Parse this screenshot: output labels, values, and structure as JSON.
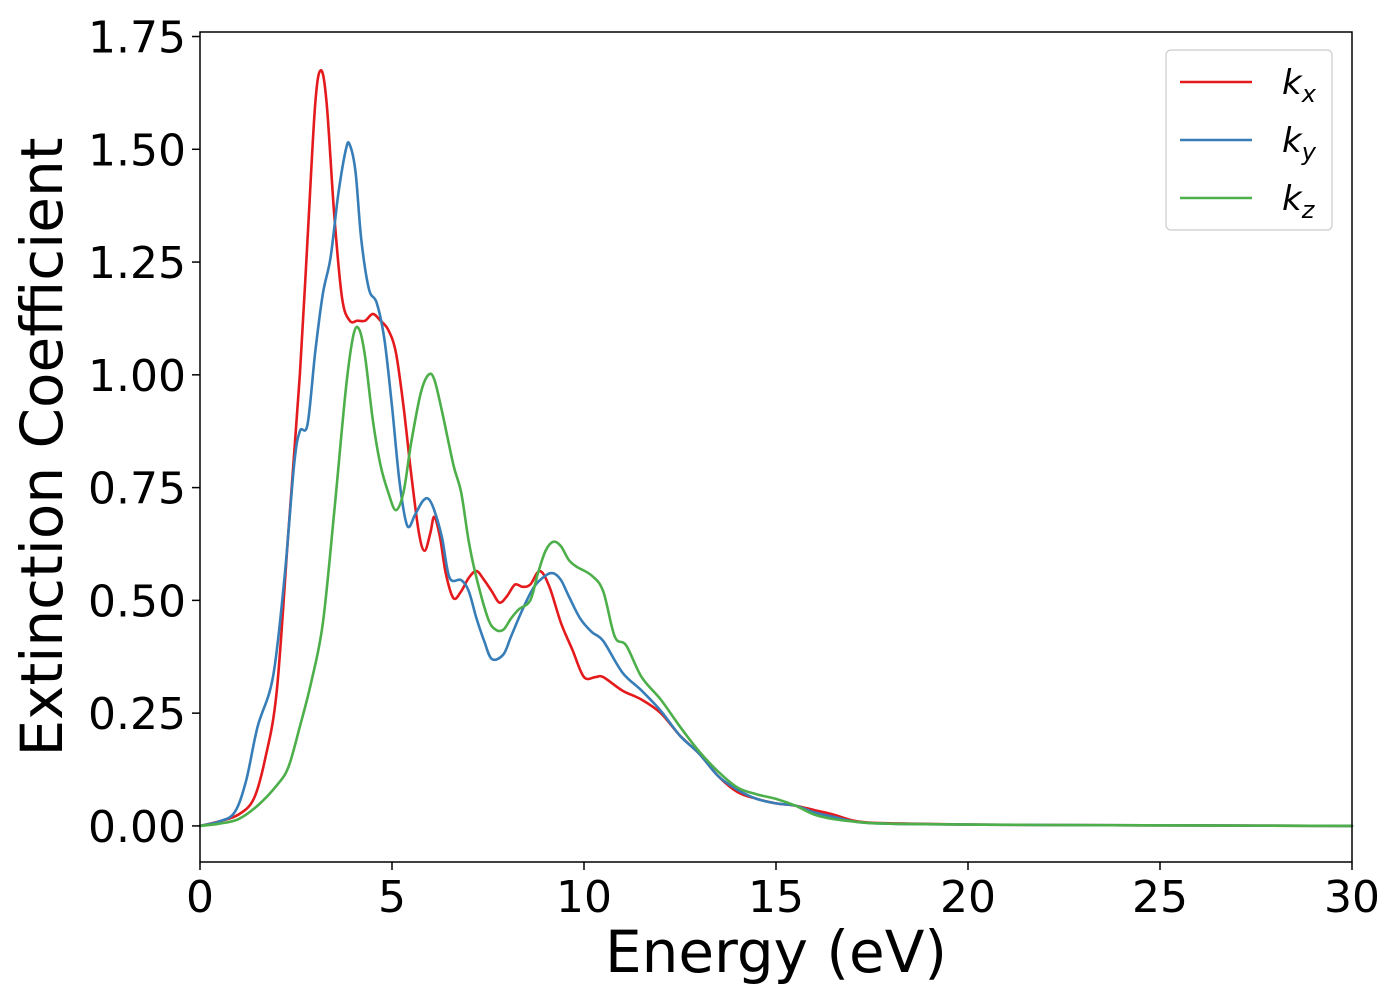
{
  "chart_data": {
    "type": "line",
    "title": "",
    "xlabel": "Energy (eV)",
    "ylabel": "Extinction Coefficient",
    "xlim": [
      0,
      30
    ],
    "ylim": [
      -0.08,
      1.76
    ],
    "xticks": [
      0,
      5,
      10,
      15,
      20,
      25,
      30
    ],
    "xtick_labels": [
      "0",
      "5",
      "10",
      "15",
      "20",
      "25",
      "30"
    ],
    "yticks": [
      0.0,
      0.25,
      0.5,
      0.75,
      1.0,
      1.25,
      1.5,
      1.75
    ],
    "ytick_labels": [
      "0.00",
      "0.25",
      "0.50",
      "0.75",
      "1.00",
      "1.25",
      "1.50",
      "1.75"
    ],
    "grid": false,
    "legend_position": "top-right",
    "series": [
      {
        "name": "k_x",
        "label_base": "k",
        "label_sub": "x",
        "color": "#e41a1c",
        "points": [
          [
            0,
            0.0
          ],
          [
            0.5,
            0.01
          ],
          [
            1.0,
            0.025
          ],
          [
            1.4,
            0.06
          ],
          [
            1.7,
            0.15
          ],
          [
            2.0,
            0.3
          ],
          [
            2.3,
            0.65
          ],
          [
            2.6,
            1.0
          ],
          [
            2.8,
            1.3
          ],
          [
            3.0,
            1.6
          ],
          [
            3.15,
            1.675
          ],
          [
            3.3,
            1.6
          ],
          [
            3.5,
            1.35
          ],
          [
            3.7,
            1.17
          ],
          [
            3.9,
            1.12
          ],
          [
            4.1,
            1.12
          ],
          [
            4.3,
            1.12
          ],
          [
            4.5,
            1.135
          ],
          [
            4.7,
            1.12
          ],
          [
            4.9,
            1.1
          ],
          [
            5.1,
            1.05
          ],
          [
            5.3,
            0.93
          ],
          [
            5.5,
            0.78
          ],
          [
            5.7,
            0.65
          ],
          [
            5.85,
            0.61
          ],
          [
            6.0,
            0.65
          ],
          [
            6.1,
            0.685
          ],
          [
            6.25,
            0.64
          ],
          [
            6.4,
            0.56
          ],
          [
            6.6,
            0.505
          ],
          [
            6.8,
            0.52
          ],
          [
            7.0,
            0.55
          ],
          [
            7.2,
            0.565
          ],
          [
            7.4,
            0.545
          ],
          [
            7.6,
            0.52
          ],
          [
            7.8,
            0.495
          ],
          [
            8.0,
            0.51
          ],
          [
            8.2,
            0.535
          ],
          [
            8.4,
            0.53
          ],
          [
            8.6,
            0.535
          ],
          [
            8.85,
            0.565
          ],
          [
            9.1,
            0.53
          ],
          [
            9.4,
            0.45
          ],
          [
            9.7,
            0.39
          ],
          [
            10.0,
            0.33
          ],
          [
            10.3,
            0.33
          ],
          [
            10.5,
            0.33
          ],
          [
            11.0,
            0.3
          ],
          [
            11.5,
            0.28
          ],
          [
            12.0,
            0.25
          ],
          [
            12.5,
            0.2
          ],
          [
            13.0,
            0.16
          ],
          [
            13.5,
            0.11
          ],
          [
            14.0,
            0.075
          ],
          [
            14.5,
            0.06
          ],
          [
            15.0,
            0.05
          ],
          [
            15.5,
            0.045
          ],
          [
            16.0,
            0.035
          ],
          [
            16.5,
            0.025
          ],
          [
            17.0,
            0.012
          ],
          [
            17.5,
            0.007
          ],
          [
            18.5,
            0.005
          ],
          [
            20.0,
            0.003
          ],
          [
            22.0,
            0.002
          ],
          [
            26.0,
            0.001
          ],
          [
            30.0,
            0.0
          ]
        ]
      },
      {
        "name": "k_y",
        "label_base": "k",
        "label_sub": "y",
        "color": "#377eb8",
        "points": [
          [
            0,
            0.0
          ],
          [
            0.5,
            0.01
          ],
          [
            0.9,
            0.03
          ],
          [
            1.2,
            0.1
          ],
          [
            1.5,
            0.22
          ],
          [
            1.9,
            0.33
          ],
          [
            2.2,
            0.55
          ],
          [
            2.45,
            0.8
          ],
          [
            2.6,
            0.875
          ],
          [
            2.8,
            0.89
          ],
          [
            3.0,
            1.05
          ],
          [
            3.2,
            1.18
          ],
          [
            3.4,
            1.26
          ],
          [
            3.6,
            1.4
          ],
          [
            3.8,
            1.5
          ],
          [
            3.9,
            1.51
          ],
          [
            4.05,
            1.45
          ],
          [
            4.2,
            1.3
          ],
          [
            4.4,
            1.19
          ],
          [
            4.6,
            1.16
          ],
          [
            4.8,
            1.08
          ],
          [
            5.0,
            0.93
          ],
          [
            5.2,
            0.76
          ],
          [
            5.4,
            0.665
          ],
          [
            5.6,
            0.69
          ],
          [
            5.8,
            0.72
          ],
          [
            5.95,
            0.725
          ],
          [
            6.1,
            0.7
          ],
          [
            6.3,
            0.64
          ],
          [
            6.5,
            0.55
          ],
          [
            6.8,
            0.545
          ],
          [
            7.0,
            0.52
          ],
          [
            7.2,
            0.46
          ],
          [
            7.4,
            0.41
          ],
          [
            7.6,
            0.37
          ],
          [
            7.9,
            0.38
          ],
          [
            8.1,
            0.42
          ],
          [
            8.4,
            0.48
          ],
          [
            8.7,
            0.53
          ],
          [
            9.0,
            0.555
          ],
          [
            9.2,
            0.56
          ],
          [
            9.4,
            0.545
          ],
          [
            9.6,
            0.51
          ],
          [
            9.9,
            0.46
          ],
          [
            10.2,
            0.43
          ],
          [
            10.5,
            0.41
          ],
          [
            11.0,
            0.34
          ],
          [
            11.5,
            0.3
          ],
          [
            12.0,
            0.255
          ],
          [
            12.5,
            0.2
          ],
          [
            13.0,
            0.16
          ],
          [
            13.5,
            0.11
          ],
          [
            14.0,
            0.08
          ],
          [
            14.5,
            0.06
          ],
          [
            15.0,
            0.05
          ],
          [
            15.5,
            0.045
          ],
          [
            16.0,
            0.03
          ],
          [
            16.5,
            0.02
          ],
          [
            17.0,
            0.01
          ],
          [
            17.5,
            0.006
          ],
          [
            18.5,
            0.004
          ],
          [
            20.0,
            0.003
          ],
          [
            22.0,
            0.002
          ],
          [
            26.0,
            0.001
          ],
          [
            30.0,
            0.0
          ]
        ]
      },
      {
        "name": "k_z",
        "label_base": "k",
        "label_sub": "z",
        "color": "#4daf4a",
        "points": [
          [
            0,
            0.0
          ],
          [
            0.5,
            0.005
          ],
          [
            1.0,
            0.015
          ],
          [
            1.5,
            0.045
          ],
          [
            2.0,
            0.09
          ],
          [
            2.3,
            0.13
          ],
          [
            2.6,
            0.22
          ],
          [
            2.9,
            0.32
          ],
          [
            3.2,
            0.45
          ],
          [
            3.5,
            0.7
          ],
          [
            3.8,
            0.97
          ],
          [
            4.0,
            1.09
          ],
          [
            4.15,
            1.1
          ],
          [
            4.3,
            1.04
          ],
          [
            4.5,
            0.9
          ],
          [
            4.7,
            0.8
          ],
          [
            4.9,
            0.74
          ],
          [
            5.1,
            0.7
          ],
          [
            5.3,
            0.74
          ],
          [
            5.5,
            0.85
          ],
          [
            5.75,
            0.96
          ],
          [
            5.95,
            1.0
          ],
          [
            6.1,
            0.99
          ],
          [
            6.3,
            0.92
          ],
          [
            6.6,
            0.8
          ],
          [
            6.8,
            0.74
          ],
          [
            7.0,
            0.63
          ],
          [
            7.2,
            0.55
          ],
          [
            7.5,
            0.46
          ],
          [
            7.7,
            0.435
          ],
          [
            7.9,
            0.435
          ],
          [
            8.1,
            0.46
          ],
          [
            8.3,
            0.48
          ],
          [
            8.6,
            0.5
          ],
          [
            8.8,
            0.56
          ],
          [
            9.0,
            0.61
          ],
          [
            9.2,
            0.63
          ],
          [
            9.4,
            0.62
          ],
          [
            9.6,
            0.59
          ],
          [
            9.8,
            0.575
          ],
          [
            10.2,
            0.555
          ],
          [
            10.5,
            0.52
          ],
          [
            10.8,
            0.42
          ],
          [
            11.1,
            0.4
          ],
          [
            11.5,
            0.33
          ],
          [
            12.0,
            0.28
          ],
          [
            12.5,
            0.22
          ],
          [
            13.0,
            0.165
          ],
          [
            13.5,
            0.12
          ],
          [
            14.0,
            0.085
          ],
          [
            14.5,
            0.07
          ],
          [
            15.0,
            0.06
          ],
          [
            15.5,
            0.045
          ],
          [
            16.0,
            0.025
          ],
          [
            16.5,
            0.015
          ],
          [
            17.0,
            0.01
          ],
          [
            17.5,
            0.006
          ],
          [
            18.5,
            0.004
          ],
          [
            20.0,
            0.003
          ],
          [
            22.0,
            0.002
          ],
          [
            26.0,
            0.001
          ],
          [
            30.0,
            0.0
          ]
        ]
      }
    ]
  }
}
